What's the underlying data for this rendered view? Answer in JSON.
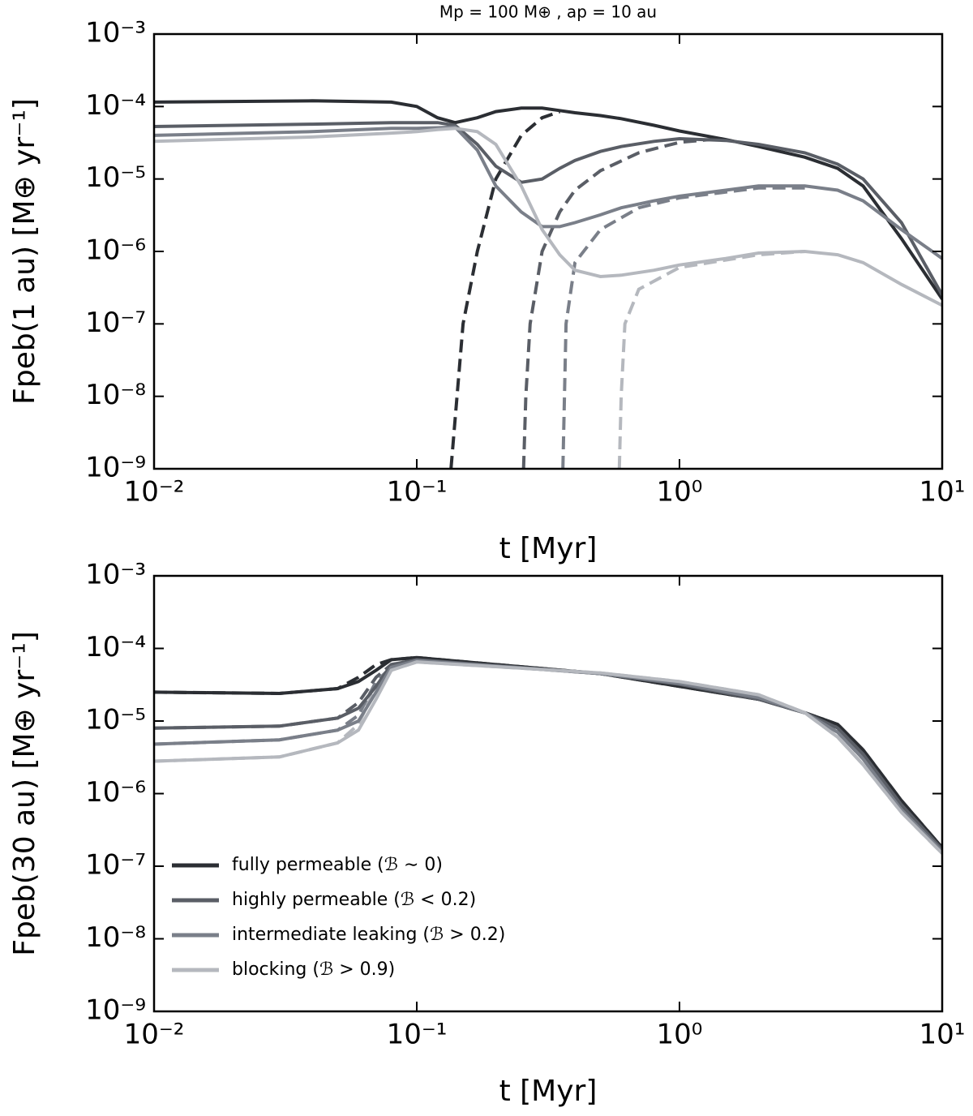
{
  "chart_data": [
    {
      "type": "line",
      "title": "Mp = 100 M⊕ , ap = 10 au",
      "xlabel": "t [Myr]",
      "ylabel": "Fpeb(1 au) [M⊕ yr⁻¹]",
      "log_x": true,
      "log_y": true,
      "xlim": [
        0.01,
        10
      ],
      "ylim": [
        1e-09,
        0.001
      ],
      "xticks": [
        {
          "value": 0.01,
          "label": "10⁻²"
        },
        {
          "value": 0.1,
          "label": "10⁻¹"
        },
        {
          "value": 1,
          "label": "10⁰"
        },
        {
          "value": 10,
          "label": "10¹"
        }
      ],
      "yticks": [
        {
          "value": 1e-09,
          "label": "10⁻⁹"
        },
        {
          "value": 1e-08,
          "label": "10⁻⁸"
        },
        {
          "value": 1e-07,
          "label": "10⁻⁷"
        },
        {
          "value": 1e-06,
          "label": "10⁻⁶"
        },
        {
          "value": 1e-05,
          "label": "10⁻⁵"
        },
        {
          "value": 0.0001,
          "label": "10⁻⁴"
        },
        {
          "value": 0.001,
          "label": "10⁻³"
        }
      ],
      "x": [
        0.01,
        0.04,
        0.08,
        0.1,
        0.12,
        0.14,
        0.17,
        0.2,
        0.25,
        0.3,
        0.35,
        0.4,
        0.5,
        0.6,
        0.8,
        1,
        1.5,
        2,
        3,
        4,
        5,
        7,
        10
      ],
      "series": [
        {
          "color": "#2b2e33",
          "values": [
            0.000115,
            0.00012,
            0.000115,
            0.0001,
            7e-05,
            6e-05,
            7e-05,
            8.5e-05,
            9.5e-05,
            9.5e-05,
            8.8e-05,
            8.2e-05,
            7.5e-05,
            6.8e-05,
            5.5e-05,
            4.6e-05,
            3.5e-05,
            2.8e-05,
            2e-05,
            1.4e-05,
            8e-06,
            1.5e-06,
            2.2e-07
          ],
          "dashed": {
            "x": [
              0.135,
              0.15,
              0.17,
              0.2,
              0.25,
              0.3,
              0.35
            ],
            "values": [
              1e-09,
              1e-07,
              1e-06,
              1e-05,
              4e-05,
              7e-05,
              8.5e-05
            ]
          }
        },
        {
          "color": "#5a5e66",
          "values": [
            5.3e-05,
            5.7e-05,
            6e-05,
            6e-05,
            6e-05,
            5.5e-05,
            3e-05,
            1.5e-05,
            9e-06,
            1e-05,
            1.4e-05,
            1.8e-05,
            2.4e-05,
            2.8e-05,
            3.3e-05,
            3.6e-05,
            3.4e-05,
            3e-05,
            2.3e-05,
            1.6e-05,
            1e-05,
            2.5e-06,
            2.5e-07
          ],
          "dashed": {
            "x": [
              0.255,
              0.26,
              0.27,
              0.3,
              0.35,
              0.4,
              0.5,
              0.7,
              1,
              1.3
            ],
            "values": [
              1e-09,
              1e-08,
              1e-07,
              1e-06,
              3.5e-06,
              7e-06,
              1.3e-05,
              2.3e-05,
              3.2e-05,
              3.5e-05
            ]
          }
        },
        {
          "color": "#7a7f89",
          "values": [
            4e-05,
            4.5e-05,
            5e-05,
            5e-05,
            5.1e-05,
            5.2e-05,
            2.5e-05,
            8e-06,
            3.5e-06,
            2.2e-06,
            2.2e-06,
            2.5e-06,
            3.2e-06,
            4e-06,
            5e-06,
            5.8e-06,
            7e-06,
            8e-06,
            8e-06,
            7e-06,
            5e-06,
            2e-06,
            8e-07
          ],
          "dashed": {
            "x": [
              0.36,
              0.37,
              0.4,
              0.5,
              0.7,
              1,
              2,
              3
            ],
            "values": [
              1e-09,
              1e-07,
              7e-07,
              2e-06,
              4e-06,
              5.5e-06,
              7.5e-06,
              7.5e-06
            ]
          }
        },
        {
          "color": "#b5b8be",
          "values": [
            3.3e-05,
            3.8e-05,
            4.3e-05,
            4.5e-05,
            4.8e-05,
            5e-05,
            4.5e-05,
            3e-05,
            8e-06,
            2e-06,
            9e-07,
            5.5e-07,
            4.5e-07,
            4.7e-07,
            5.5e-07,
            6.5e-07,
            8e-07,
            9.5e-07,
            1e-06,
            9e-07,
            7e-07,
            3.5e-07,
            1.8e-07
          ],
          "dashed": {
            "x": [
              0.59,
              0.6,
              0.62,
              0.7,
              1,
              2,
              3
            ],
            "values": [
              1e-09,
              1e-08,
              1e-07,
              3e-07,
              6e-07,
              9e-07,
              1e-06
            ]
          }
        }
      ]
    },
    {
      "type": "line",
      "xlabel": "t [Myr]",
      "ylabel": "Fpeb(30 au) [M⊕ yr⁻¹]",
      "log_x": true,
      "log_y": true,
      "xlim": [
        0.01,
        10
      ],
      "ylim": [
        1e-09,
        0.001
      ],
      "legend": "lower left",
      "xticks": [
        {
          "value": 0.01,
          "label": "10⁻²"
        },
        {
          "value": 0.1,
          "label": "10⁻¹"
        },
        {
          "value": 1,
          "label": "10⁰"
        },
        {
          "value": 10,
          "label": "10¹"
        }
      ],
      "yticks": [
        {
          "value": 1e-09,
          "label": "10⁻⁹"
        },
        {
          "value": 1e-08,
          "label": "10⁻⁸"
        },
        {
          "value": 1e-07,
          "label": "10⁻⁷"
        },
        {
          "value": 1e-06,
          "label": "10⁻⁶"
        },
        {
          "value": 1e-05,
          "label": "10⁻⁵"
        },
        {
          "value": 0.0001,
          "label": "10⁻⁴"
        },
        {
          "value": 0.001,
          "label": "10⁻³"
        }
      ],
      "x": [
        0.01,
        0.03,
        0.05,
        0.06,
        0.07,
        0.08,
        0.1,
        0.2,
        0.5,
        1,
        2,
        3,
        4,
        5,
        7,
        10
      ],
      "series": [
        {
          "name": "fully permeable (ℬ ∼ 0)",
          "color": "#2b2e33",
          "values": [
            2.5e-05,
            2.4e-05,
            2.8e-05,
            3.5e-05,
            5e-05,
            7e-05,
            7.5e-05,
            6e-05,
            4.5e-05,
            3e-05,
            2e-05,
            1.3e-05,
            9e-06,
            4e-06,
            8e-07,
            1.8e-07
          ],
          "dashed": {
            "x": [
              0.01,
              0.03,
              0.05,
              0.06,
              0.07,
              0.08,
              0.1,
              0.2,
              0.5,
              1,
              2,
              3,
              4,
              5,
              7,
              10
            ],
            "values": [
              2.5e-05,
              2.4e-05,
              2.8e-05,
              4e-05,
              6e-05,
              7e-05,
              7.5e-05,
              6e-05,
              4.5e-05,
              3e-05,
              2e-05,
              1.3e-05,
              9e-06,
              4e-06,
              8e-07,
              1.8e-07
            ]
          }
        },
        {
          "name": "highly permeable (ℬ < 0.2)",
          "color": "#5a5e66",
          "values": [
            8e-06,
            8.5e-06,
            1.1e-05,
            1.5e-05,
            3e-05,
            6e-05,
            7e-05,
            5.8e-05,
            4.5e-05,
            3.2e-05,
            2e-05,
            1.3e-05,
            8e-06,
            3.5e-06,
            7e-07,
            1.7e-07
          ],
          "dashed": {
            "x": [
              0.01,
              0.03,
              0.05,
              0.06,
              0.07,
              0.08,
              0.1,
              0.2,
              0.5,
              1,
              2,
              3,
              4,
              5,
              7,
              10
            ],
            "values": [
              8e-06,
              8.5e-06,
              1.1e-05,
              1.8e-05,
              4e-05,
              6e-05,
              7e-05,
              5.8e-05,
              4.5e-05,
              3.2e-05,
              2e-05,
              1.3e-05,
              8e-06,
              3.5e-06,
              7e-07,
              1.7e-07
            ]
          }
        },
        {
          "name": "intermediate leaking (ℬ > 0.2)",
          "color": "#7a7f89",
          "values": [
            4.8e-06,
            5.5e-06,
            7.5e-06,
            1e-05,
            2.5e-05,
            5.5e-05,
            6.8e-05,
            5.7e-05,
            4.5e-05,
            3.3e-05,
            2.1e-05,
            1.3e-05,
            7e-06,
            3e-06,
            6e-07,
            1.6e-07
          ],
          "dashed": {
            "x": [
              0.01,
              0.03,
              0.05,
              0.06,
              0.07,
              0.08,
              0.1,
              0.2,
              0.5,
              1,
              2,
              3,
              4,
              5,
              7,
              10
            ],
            "values": [
              4.8e-06,
              5.5e-06,
              7.5e-06,
              1.2e-05,
              3.5e-05,
              5.5e-05,
              6.8e-05,
              5.7e-05,
              4.5e-05,
              3.3e-05,
              2.1e-05,
              1.3e-05,
              7e-06,
              3e-06,
              6e-07,
              1.6e-07
            ]
          }
        },
        {
          "name": "blocking (ℬ > 0.9)",
          "color": "#b5b8be",
          "values": [
            2.8e-06,
            3.2e-06,
            5e-06,
            7.5e-06,
            2e-05,
            5e-05,
            6.5e-05,
            5.6e-05,
            4.6e-05,
            3.5e-05,
            2.3e-05,
            1.3e-05,
            6e-06,
            2.5e-06,
            5.5e-07,
            1.5e-07
          ],
          "dashed": {
            "x": [
              0.01,
              0.03,
              0.05,
              0.06,
              0.07,
              0.08,
              0.1,
              0.2,
              0.5,
              1,
              2,
              3,
              4,
              5,
              7,
              10
            ],
            "values": [
              2.8e-06,
              3.2e-06,
              5e-06,
              9e-06,
              3e-05,
              5e-05,
              6.5e-05,
              5.6e-05,
              4.6e-05,
              3.5e-05,
              2.3e-05,
              1.3e-05,
              6e-06,
              2.5e-06,
              5.5e-07,
              1.5e-07
            ]
          }
        }
      ]
    }
  ]
}
